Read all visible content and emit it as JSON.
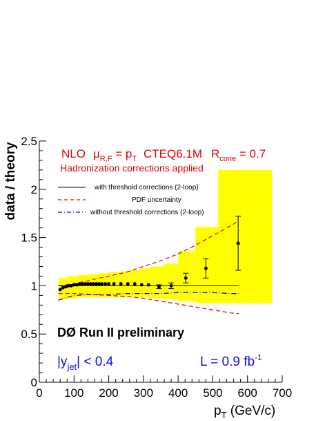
{
  "chart_data": {
    "type": "scatter",
    "xlabel_main": "p",
    "xlabel_sub": "T",
    "xlabel_unit": " (GeV/c)",
    "ylabel": "data / theory",
    "xlim": [
      0,
      700
    ],
    "ylim": [
      0,
      2.5
    ],
    "x_ticks": [
      0,
      100,
      200,
      300,
      400,
      500,
      600,
      700
    ],
    "y_ticks": [
      0,
      0.5,
      1,
      1.5,
      2,
      2.5
    ],
    "y_tick_labels": [
      "0",
      "0.5",
      "1",
      "1.5",
      "2",
      "2.5"
    ],
    "header_line1": {
      "nlo": "NLO",
      "mu": "μ",
      "mu_sub": "R,F",
      "eq": " = p",
      "eq_sub": "T",
      "pdf": "CTEQ6.1M",
      "r": "R",
      "r_sub": "cone",
      "r_val": " = 0.7"
    },
    "header_line2": "Hadronization corrections applied",
    "legend": [
      {
        "label": "with threshold corrections (2-loop)",
        "style": "solid",
        "color": "#000000"
      },
      {
        "label": "PDF uncertainty",
        "style": "dashed",
        "color": "#ff0000"
      },
      {
        "label": "without threshold corrections (2-loop)",
        "style": "dashdot",
        "color": "#0000ff"
      }
    ],
    "experiment_label": "DØ Run II preliminary",
    "rapidity_label": {
      "main": "|y",
      "sub": "jet",
      "tail": "| < 0.4"
    },
    "lumi_label": {
      "main": "L = 0.9 fb",
      "sup": "-1"
    },
    "colors": {
      "band": "#ffff00",
      "pdf": "#ff0000",
      "nothreshold": "#0000ff",
      "points": "#000000"
    },
    "syst_band": [
      {
        "x0": 55,
        "x1": 80,
        "lo": 0.86,
        "hi": 1.08
      },
      {
        "x0": 80,
        "x1": 110,
        "lo": 0.87,
        "hi": 1.1
      },
      {
        "x0": 110,
        "x1": 140,
        "lo": 0.88,
        "hi": 1.11
      },
      {
        "x0": 140,
        "x1": 170,
        "lo": 0.88,
        "hi": 1.12
      },
      {
        "x0": 170,
        "x1": 200,
        "lo": 0.88,
        "hi": 1.13
      },
      {
        "x0": 200,
        "x1": 230,
        "lo": 0.88,
        "hi": 1.14
      },
      {
        "x0": 230,
        "x1": 260,
        "lo": 0.88,
        "hi": 1.15
      },
      {
        "x0": 260,
        "x1": 290,
        "lo": 0.88,
        "hi": 1.16
      },
      {
        "x0": 290,
        "x1": 320,
        "lo": 0.88,
        "hi": 1.18
      },
      {
        "x0": 320,
        "x1": 360,
        "lo": 0.87,
        "hi": 1.2
      },
      {
        "x0": 360,
        "x1": 400,
        "lo": 0.86,
        "hi": 1.23
      },
      {
        "x0": 400,
        "x1": 450,
        "lo": 0.84,
        "hi": 1.36
      },
      {
        "x0": 450,
        "x1": 515,
        "lo": 0.82,
        "hi": 1.61
      },
      {
        "x0": 515,
        "x1": 670,
        "lo": 0.82,
        "hi": 2.2
      }
    ],
    "points": [
      {
        "x": 60,
        "y": 0.96,
        "err": 0.01
      },
      {
        "x": 68,
        "y": 0.98,
        "err": 0.01
      },
      {
        "x": 76,
        "y": 0.99,
        "err": 0.01
      },
      {
        "x": 84,
        "y": 1.0,
        "err": 0.01
      },
      {
        "x": 92,
        "y": 1.0,
        "err": 0.01
      },
      {
        "x": 100,
        "y": 1.01,
        "err": 0.01
      },
      {
        "x": 108,
        "y": 1.01,
        "err": 0.01
      },
      {
        "x": 116,
        "y": 1.02,
        "err": 0.01
      },
      {
        "x": 124,
        "y": 1.02,
        "err": 0.01
      },
      {
        "x": 132,
        "y": 1.02,
        "err": 0.01
      },
      {
        "x": 140,
        "y": 1.02,
        "err": 0.01
      },
      {
        "x": 148,
        "y": 1.02,
        "err": 0.01
      },
      {
        "x": 156,
        "y": 1.02,
        "err": 0.01
      },
      {
        "x": 164,
        "y": 1.02,
        "err": 0.01
      },
      {
        "x": 172,
        "y": 1.02,
        "err": 0.01
      },
      {
        "x": 180,
        "y": 1.02,
        "err": 0.01
      },
      {
        "x": 190,
        "y": 1.02,
        "err": 0.01
      },
      {
        "x": 200,
        "y": 1.02,
        "err": 0.01
      },
      {
        "x": 215,
        "y": 1.02,
        "err": 0.01
      },
      {
        "x": 235,
        "y": 1.02,
        "err": 0.01
      },
      {
        "x": 255,
        "y": 1.02,
        "err": 0.01
      },
      {
        "x": 275,
        "y": 1.02,
        "err": 0.01
      },
      {
        "x": 295,
        "y": 1.01,
        "err": 0.01
      },
      {
        "x": 315,
        "y": 1.01,
        "err": 0.01
      },
      {
        "x": 345,
        "y": 0.99,
        "err": 0.02
      },
      {
        "x": 380,
        "y": 1.0,
        "err": 0.03
      },
      {
        "x": 422,
        "y": 1.08,
        "err": 0.05
      },
      {
        "x": 480,
        "y": 1.18,
        "err": 0.1
      },
      {
        "x": 573,
        "y": 1.44,
        "err": 0.28
      }
    ],
    "threshold_line": {
      "x": [
        55,
        575
      ],
      "y": [
        1.0,
        1.0
      ]
    },
    "pdf_upper": {
      "x": [
        55,
        100,
        150,
        200,
        250,
        300,
        350,
        400,
        450,
        500,
        550,
        575
      ],
      "y": [
        1.0,
        1.02,
        1.06,
        1.1,
        1.14,
        1.2,
        1.26,
        1.33,
        1.42,
        1.52,
        1.62,
        1.67
      ]
    },
    "pdf_lower": {
      "x": [
        55,
        100,
        150,
        200,
        250,
        300,
        350,
        400,
        450,
        500,
        550,
        575
      ],
      "y": [
        0.92,
        0.92,
        0.91,
        0.9,
        0.89,
        0.87,
        0.84,
        0.81,
        0.78,
        0.75,
        0.72,
        0.71
      ]
    },
    "no_threshold_line": {
      "x": [
        55,
        80,
        100,
        150,
        200,
        250,
        300,
        350,
        400,
        450,
        500,
        550,
        575
      ],
      "y": [
        0.85,
        0.88,
        0.9,
        0.91,
        0.91,
        0.92,
        0.92,
        0.92,
        0.93,
        0.93,
        0.93,
        0.92,
        0.92
      ]
    }
  }
}
